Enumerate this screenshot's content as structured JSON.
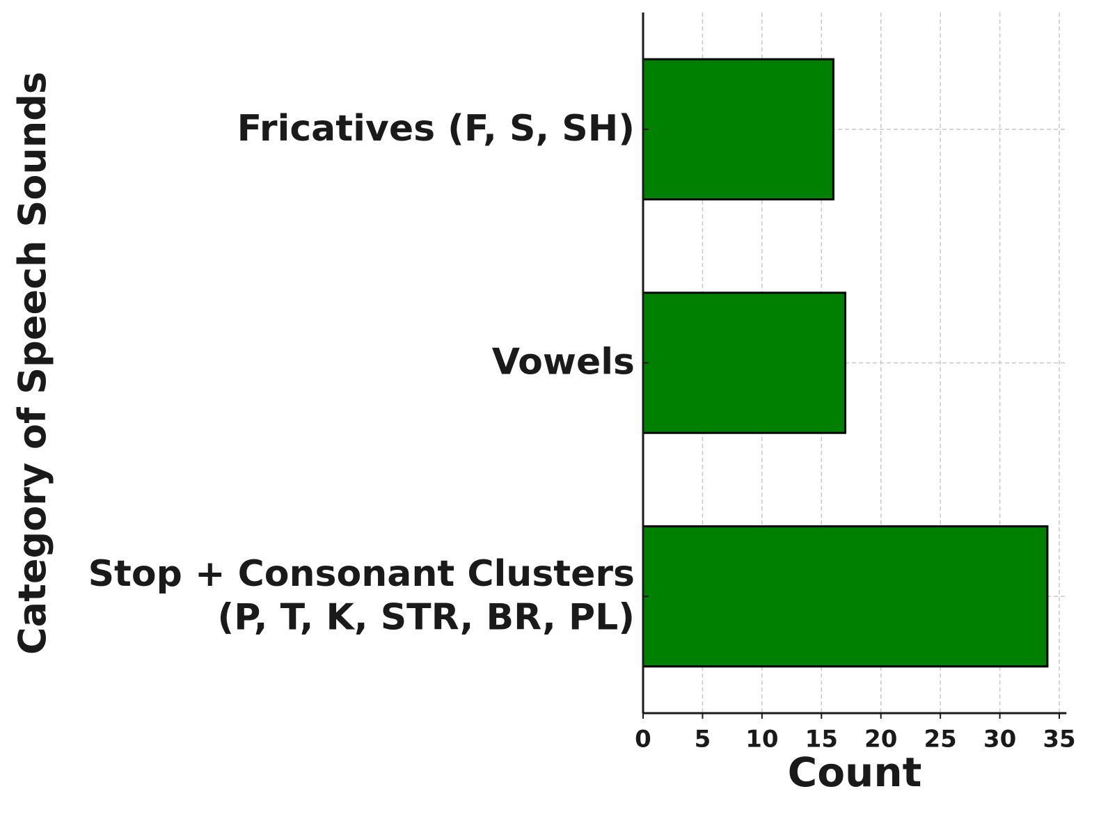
{
  "chart_data": {
    "type": "barh",
    "xlabel": "Count",
    "ylabel": "Category of Speech Sounds",
    "categories": [
      "Fricatives (F, S, SH)",
      "Vowels",
      "Stop + Consonant Clusters\n(P, T, K, STR, BR, PL)"
    ],
    "values": [
      16,
      17,
      34
    ],
    "color": "#008000",
    "xlim": [
      0,
      35.6
    ],
    "xticks": [
      0,
      5,
      10,
      15,
      20,
      25,
      30,
      35
    ],
    "grid": true
  }
}
